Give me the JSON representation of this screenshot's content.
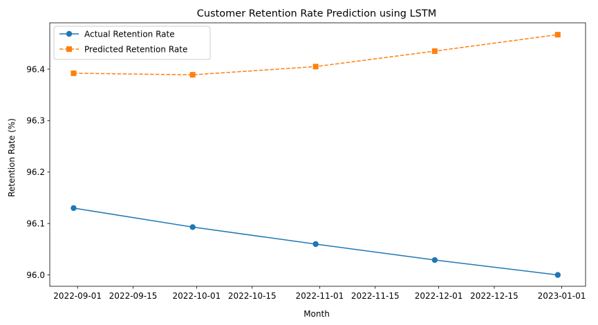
{
  "chart_data": {
    "type": "line",
    "title": "Customer Retention Rate Prediction using LSTM",
    "xlabel": "Month",
    "ylabel": "Retention Rate (%)",
    "x_tick_labels": [
      "2022-09-01",
      "2022-09-15",
      "2022-10-01",
      "2022-10-15",
      "2022-11-01",
      "2022-11-15",
      "2022-12-01",
      "2022-12-15",
      "2023-01-01"
    ],
    "y_tick_labels": [
      "96.0",
      "96.1",
      "96.2",
      "96.3",
      "96.4"
    ],
    "xlim": [
      "2022-08-25",
      "2023-01-07"
    ],
    "ylim": [
      95.978,
      96.49
    ],
    "grid": false,
    "legend_position": "upper left",
    "x": [
      "2022-08-31",
      "2022-09-30",
      "2022-10-31",
      "2022-11-30",
      "2022-12-31"
    ],
    "series": [
      {
        "name": "Actual Retention Rate",
        "values": [
          96.13,
          96.093,
          96.06,
          96.029,
          96.0
        ],
        "color": "#1f77b4",
        "marker": "circle",
        "linestyle": "solid"
      },
      {
        "name": "Predicted Retention Rate",
        "values": [
          96.392,
          96.389,
          96.405,
          96.435,
          96.467
        ],
        "color": "#ff7f0e",
        "marker": "square",
        "linestyle": "dashed"
      }
    ]
  }
}
